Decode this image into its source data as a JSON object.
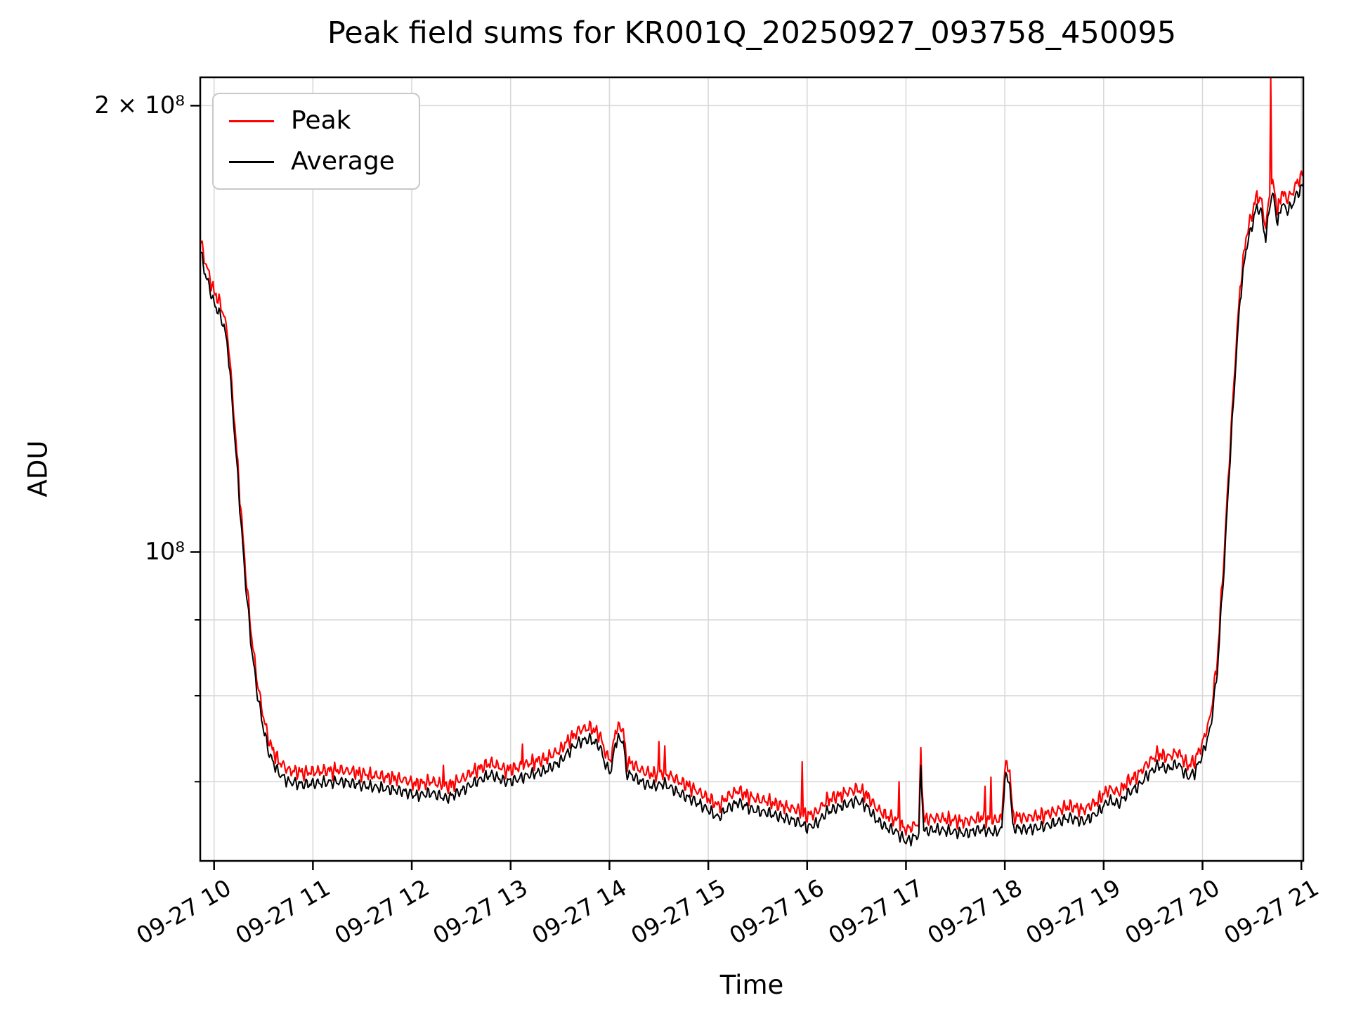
{
  "title": "Peak field sums for KR001Q_20250927_093758_450095",
  "xlabel": "Time",
  "ylabel": "ADU",
  "legend": {
    "items": [
      {
        "label": "Peak",
        "color": "#ff0000"
      },
      {
        "label": "Average",
        "color": "#000000"
      }
    ]
  },
  "chart_data": {
    "type": "line",
    "yscale": "log",
    "grid": true,
    "legend_position": "upper left",
    "xlim_hours": [
      9.86,
      21.02
    ],
    "ylim": [
      61900000,
      209000000
    ],
    "x_ticks": [
      {
        "hour": 10,
        "label": "09-27 10"
      },
      {
        "hour": 11,
        "label": "09-27 11"
      },
      {
        "hour": 12,
        "label": "09-27 12"
      },
      {
        "hour": 13,
        "label": "09-27 13"
      },
      {
        "hour": 14,
        "label": "09-27 14"
      },
      {
        "hour": 15,
        "label": "09-27 15"
      },
      {
        "hour": 16,
        "label": "09-27 16"
      },
      {
        "hour": 17,
        "label": "09-27 17"
      },
      {
        "hour": 18,
        "label": "09-27 18"
      },
      {
        "hour": 19,
        "label": "09-27 19"
      },
      {
        "hour": 20,
        "label": "09-27 20"
      },
      {
        "hour": 21,
        "label": "09-27 21"
      }
    ],
    "y_ticks_major": [
      {
        "value": 200000000,
        "label": "2 × 10⁸"
      },
      {
        "value": 100000000,
        "label": "10⁸"
      }
    ],
    "y_ticks_minor": [
      70000000,
      80000000,
      90000000
    ],
    "gridline_values_y": [
      70000000,
      80000000,
      90000000,
      100000000,
      200000000
    ],
    "noise_amplitude": 0.011,
    "series": [
      {
        "name": "Peak",
        "color": "#ff0000",
        "offset_ratio": 1.012,
        "spikes": [
          [
            12.32,
            71800000.0
          ],
          [
            13.12,
            74200000.0
          ],
          [
            14.5,
            74500000.0
          ],
          [
            14.56,
            74000000.0
          ],
          [
            15.95,
            72200000.0
          ],
          [
            16.93,
            70000000.0
          ],
          [
            17.15,
            73800000.0
          ],
          [
            17.8,
            69500000.0
          ],
          [
            17.86,
            70500000.0
          ],
          [
            20.69,
            210000000.0
          ]
        ]
      },
      {
        "name": "Average",
        "color": "#000000",
        "keypoints": [
          [
            9.86,
            160000000.0
          ],
          [
            9.9,
            155000000.0
          ],
          [
            9.95,
            151000000.0
          ],
          [
            10.0,
            147000000.0
          ],
          [
            10.05,
            145000000.0
          ],
          [
            10.1,
            142000000.0
          ],
          [
            10.14,
            137000000.0
          ],
          [
            10.18,
            127000000.0
          ],
          [
            10.22,
            117000000.0
          ],
          [
            10.27,
            105000000.0
          ],
          [
            10.32,
            95000000.0
          ],
          [
            10.38,
            86000000.0
          ],
          [
            10.44,
            80000000.0
          ],
          [
            10.5,
            76000000.0
          ],
          [
            10.56,
            73000000.0
          ],
          [
            10.65,
            71000000.0
          ],
          [
            10.75,
            70000000.0
          ],
          [
            10.9,
            69700000.0
          ],
          [
            11.1,
            69900000.0
          ],
          [
            11.3,
            70000000.0
          ],
          [
            11.5,
            69600000.0
          ],
          [
            11.7,
            69300000.0
          ],
          [
            11.9,
            69000000.0
          ],
          [
            12.05,
            68500000.0
          ],
          [
            12.2,
            68800000.0
          ],
          [
            12.35,
            68200000.0
          ],
          [
            12.5,
            69000000.0
          ],
          [
            12.65,
            70000000.0
          ],
          [
            12.8,
            70800000.0
          ],
          [
            12.95,
            70000000.0
          ],
          [
            13.05,
            70200000.0
          ],
          [
            13.2,
            70800000.0
          ],
          [
            13.35,
            71200000.0
          ],
          [
            13.5,
            72200000.0
          ],
          [
            13.6,
            73500000.0
          ],
          [
            13.7,
            74500000.0
          ],
          [
            13.8,
            74800000.0
          ],
          [
            13.9,
            74000000.0
          ],
          [
            13.97,
            71500000.0
          ],
          [
            14.02,
            71200000.0
          ],
          [
            14.06,
            74500000.0
          ],
          [
            14.1,
            74800000.0
          ],
          [
            14.14,
            74600000.0
          ],
          [
            14.17,
            71000000.0
          ],
          [
            14.25,
            70500000.0
          ],
          [
            14.35,
            69800000.0
          ],
          [
            14.45,
            69500000.0
          ],
          [
            14.55,
            69800000.0
          ],
          [
            14.7,
            68800000.0
          ],
          [
            14.85,
            68000000.0
          ],
          [
            15.0,
            67000000.0
          ],
          [
            15.1,
            66200000.0
          ],
          [
            15.2,
            67200000.0
          ],
          [
            15.3,
            67800000.0
          ],
          [
            15.45,
            67000000.0
          ],
          [
            15.6,
            66700000.0
          ],
          [
            15.75,
            66200000.0
          ],
          [
            15.9,
            65800000.0
          ],
          [
            16.0,
            65200000.0
          ],
          [
            16.1,
            65600000.0
          ],
          [
            16.2,
            66800000.0
          ],
          [
            16.35,
            67400000.0
          ],
          [
            16.5,
            68000000.0
          ],
          [
            16.6,
            67400000.0
          ],
          [
            16.7,
            66000000.0
          ],
          [
            16.8,
            65200000.0
          ],
          [
            16.9,
            64800000.0
          ],
          [
            17.0,
            63800000.0
          ],
          [
            17.08,
            64200000.0
          ],
          [
            17.13,
            64500000.0
          ],
          [
            17.15,
            71500000.0
          ],
          [
            17.18,
            64800000.0
          ],
          [
            17.3,
            65000000.0
          ],
          [
            17.45,
            64800000.0
          ],
          [
            17.6,
            64600000.0
          ],
          [
            17.75,
            65000000.0
          ],
          [
            17.9,
            64700000.0
          ],
          [
            17.97,
            65000000.0
          ],
          [
            18.0,
            70500000.0
          ],
          [
            18.05,
            70000000.0
          ],
          [
            18.08,
            65200000.0
          ],
          [
            18.2,
            65000000.0
          ],
          [
            18.35,
            65200000.0
          ],
          [
            18.5,
            65600000.0
          ],
          [
            18.65,
            66200000.0
          ],
          [
            18.8,
            65800000.0
          ],
          [
            18.95,
            66800000.0
          ],
          [
            19.05,
            68000000.0
          ],
          [
            19.15,
            67600000.0
          ],
          [
            19.25,
            68800000.0
          ],
          [
            19.35,
            69500000.0
          ],
          [
            19.45,
            70800000.0
          ],
          [
            19.55,
            71800000.0
          ],
          [
            19.65,
            71400000.0
          ],
          [
            19.75,
            72000000.0
          ],
          [
            19.85,
            70500000.0
          ],
          [
            19.92,
            71000000.0
          ],
          [
            20.0,
            73000000.0
          ],
          [
            20.08,
            76000000.0
          ],
          [
            20.15,
            83000000.0
          ],
          [
            20.22,
            98000000.0
          ],
          [
            20.3,
            122000000.0
          ],
          [
            20.38,
            148000000.0
          ],
          [
            20.44,
            160000000.0
          ],
          [
            20.5,
            166000000.0
          ],
          [
            20.55,
            171000000.0
          ],
          [
            20.6,
            169000000.0
          ],
          [
            20.64,
            162000000.0
          ],
          [
            20.68,
            172000000.0
          ],
          [
            20.72,
            174000000.0
          ],
          [
            20.76,
            166000000.0
          ],
          [
            20.8,
            172000000.0
          ],
          [
            20.85,
            170000000.0
          ],
          [
            20.9,
            171000000.0
          ],
          [
            20.95,
            174000000.0
          ],
          [
            21.0,
            176000000.0
          ],
          [
            21.02,
            177000000.0
          ]
        ]
      }
    ]
  }
}
